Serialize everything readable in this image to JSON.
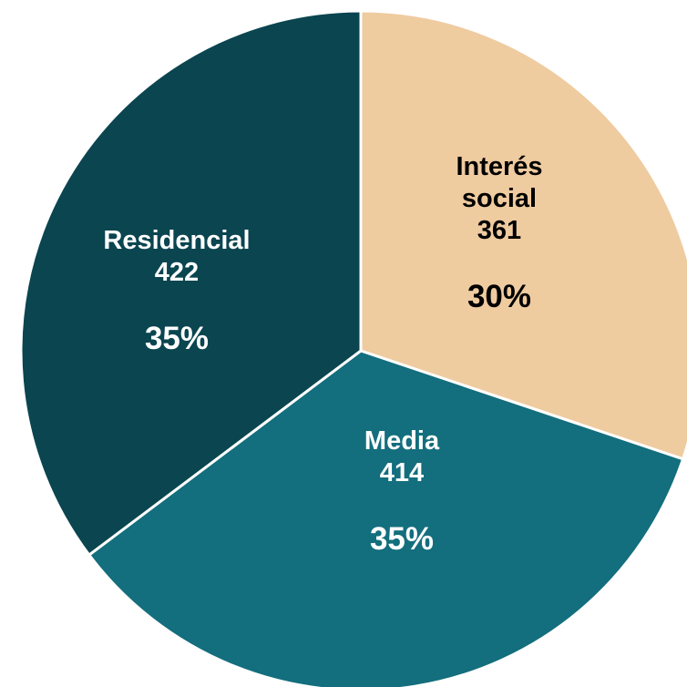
{
  "chart_data": {
    "type": "pie",
    "slices": [
      {
        "name_lines": [
          "Interés",
          "social"
        ],
        "value": 361,
        "percent_label": "30%",
        "color": "#efcba0",
        "text_color": "#000000"
      },
      {
        "name_lines": [
          "Media"
        ],
        "value": 414,
        "percent_label": "35%",
        "color": "#136e7d",
        "text_color": "#ffffff"
      },
      {
        "name_lines": [
          "Residencial"
        ],
        "value": 422,
        "percent_label": "35%",
        "color": "#0a4550",
        "text_color": "#ffffff"
      }
    ],
    "legend": "none"
  }
}
